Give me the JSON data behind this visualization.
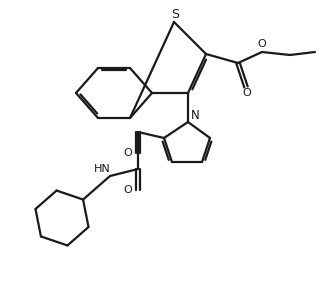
{
  "bg_color": "#ffffff",
  "line_color": "#1a1a1a",
  "lw": 1.6,
  "dg": 0.016,
  "figsize": [
    3.22,
    2.9
  ],
  "dpi": 100,
  "xlim": [
    0,
    3.22
  ],
  "ylim": [
    0,
    2.9
  ]
}
